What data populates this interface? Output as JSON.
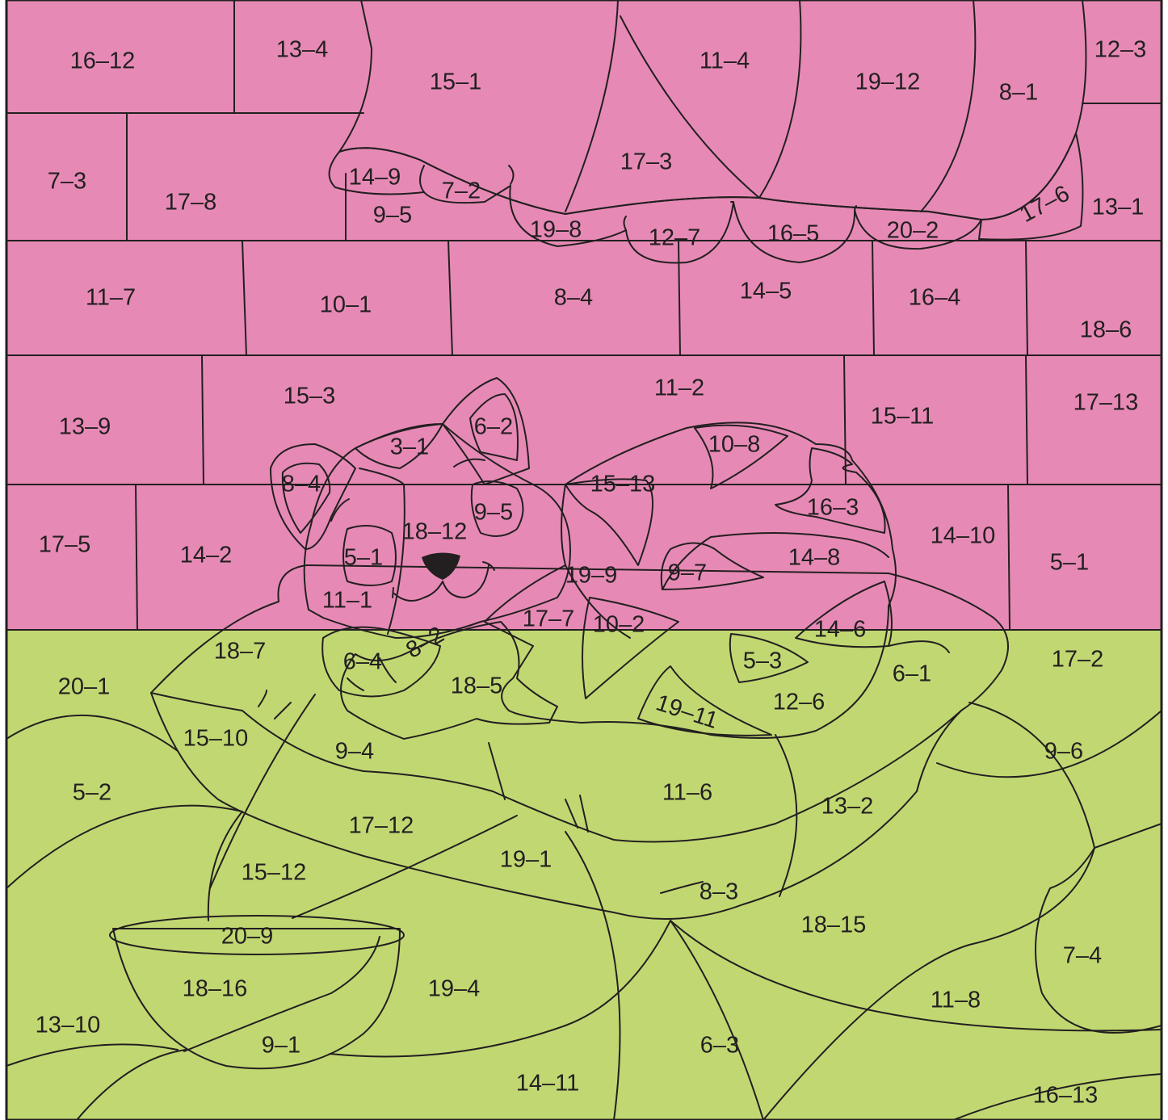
{
  "colors": {
    "wall": "#e68ab5",
    "curtain": "#ee4e5a",
    "curtain_trim": "#fff200",
    "floor": "#c1d872",
    "cushion": "#fff200",
    "cat_body": "#9fd9ee",
    "cat_stripes": "#bbbcc0",
    "bowl": "#bbbcc0",
    "bowl_food": "#fff200",
    "nose": "#231f20",
    "outline": "#231f20"
  },
  "regions": {
    "wall": {
      "r1": [
        "16–12",
        "13–4",
        "12–3"
      ],
      "r2": [
        "7–3",
        "17–8",
        "9–5",
        "13–1"
      ],
      "r3": [
        "11–7",
        "10–1",
        "8–4",
        "14–5",
        "16–4",
        "18–6"
      ],
      "r4": [
        "13–9",
        "15–3",
        "11–2",
        "15–11",
        "17–13"
      ],
      "r5": [
        "17–5",
        "14–2",
        "14–10",
        "5–1"
      ]
    },
    "curtain": [
      "15–1",
      "11–4",
      "19–12",
      "8–1",
      "17–3"
    ],
    "curtain_trim": [
      "14–9",
      "7–2",
      "19–8",
      "12–7",
      "16–5",
      "20–2",
      "17–6"
    ],
    "cat": {
      "head": [
        "3–1",
        "6–2",
        "8–4",
        "9–5",
        "18–12",
        "5–1",
        "11–1"
      ],
      "body": [
        "15–13",
        "10–8",
        "16–3",
        "19–9",
        "9–7",
        "14–8",
        "14–6",
        "17–7",
        "10–2",
        "5–3",
        "12–6",
        "19–11"
      ],
      "paw_and_tail": [
        "6–4",
        "8–2",
        "18–5"
      ]
    },
    "cushion": [
      "18–7",
      "15–10",
      "9–4",
      "11–6",
      "6–1",
      "17–12",
      "13–2",
      "19–1",
      "8–3"
    ],
    "floor": [
      "20–1",
      "17–2",
      "5–2",
      "9–6",
      "15–12",
      "18–15",
      "7–4",
      "19–4",
      "11–8",
      "13–10",
      "6–3",
      "14–11",
      "16–13"
    ],
    "bowl": [
      "20–9",
      "18–16",
      "9–1"
    ]
  }
}
